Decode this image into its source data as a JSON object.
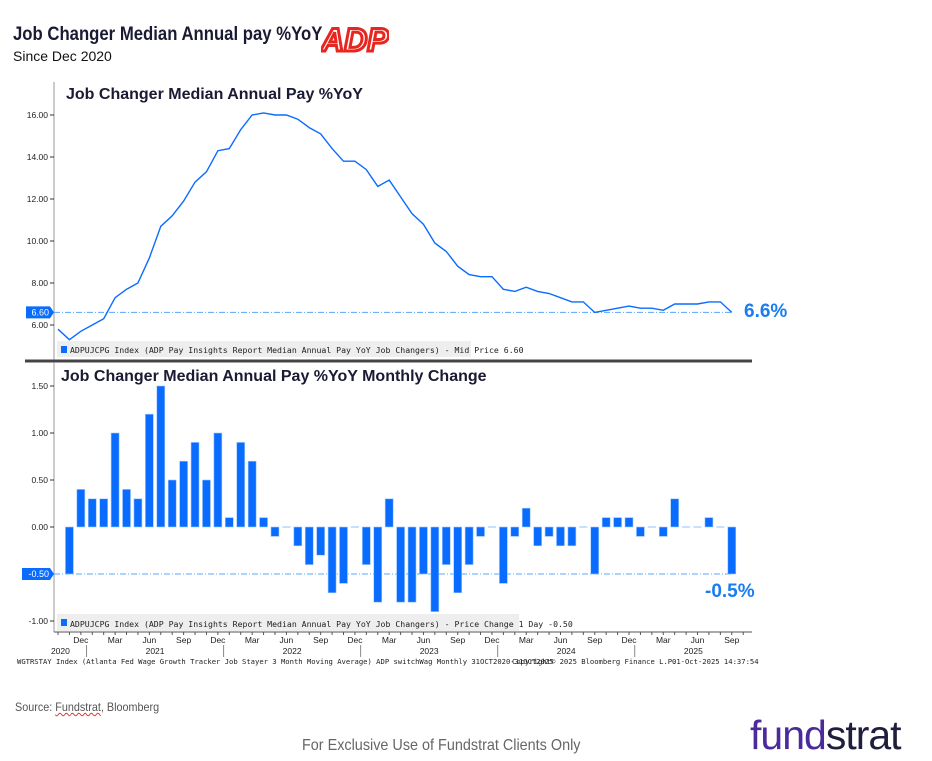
{
  "header": {
    "title": "Job Changer Median Annual pay %YoY",
    "subtitle": "Since Dec 2020",
    "logo": "ADP"
  },
  "colors": {
    "series": "#0a6cff",
    "callout": "#1a7cf0",
    "refline": "#5aa8ff",
    "divider": "#444444"
  },
  "chart_data": [
    {
      "type": "line",
      "title": "Job Changer Median Annual Pay %YoY",
      "x": [
        "Oct 2020",
        "Nov 2020",
        "Dec 2020",
        "Jan 2021",
        "Feb 2021",
        "Mar 2021",
        "Apr 2021",
        "May 2021",
        "Jun 2021",
        "Jul 2021",
        "Aug 2021",
        "Sep 2021",
        "Oct 2021",
        "Nov 2021",
        "Dec 2021",
        "Jan 2022",
        "Feb 2022",
        "Mar 2022",
        "Apr 2022",
        "May 2022",
        "Jun 2022",
        "Jul 2022",
        "Aug 2022",
        "Sep 2022",
        "Oct 2022",
        "Nov 2022",
        "Dec 2022",
        "Jan 2023",
        "Feb 2023",
        "Mar 2023",
        "Apr 2023",
        "May 2023",
        "Jun 2023",
        "Jul 2023",
        "Aug 2023",
        "Sep 2023",
        "Oct 2023",
        "Nov 2023",
        "Dec 2023",
        "Jan 2024",
        "Feb 2024",
        "Mar 2024",
        "Apr 2024",
        "May 2024",
        "Jun 2024",
        "Jul 2024",
        "Aug 2024",
        "Sep 2024",
        "Oct 2024",
        "Nov 2024",
        "Dec 2024",
        "Jan 2025",
        "Feb 2025",
        "Mar 2025",
        "Apr 2025",
        "May 2025",
        "Jun 2025",
        "Jul 2025",
        "Aug 2025",
        "Sep 2025"
      ],
      "values": [
        5.8,
        5.3,
        5.7,
        6.0,
        6.3,
        7.3,
        7.7,
        8.0,
        9.2,
        10.7,
        11.2,
        11.9,
        12.8,
        13.3,
        14.3,
        14.4,
        15.3,
        16.0,
        16.1,
        16.0,
        16.0,
        15.8,
        15.4,
        15.1,
        14.4,
        13.8,
        13.8,
        13.4,
        12.6,
        12.9,
        12.1,
        11.3,
        10.8,
        9.9,
        9.5,
        8.8,
        8.4,
        8.3,
        8.3,
        7.7,
        7.6,
        7.8,
        7.6,
        7.5,
        7.3,
        7.1,
        7.1,
        6.6,
        6.7,
        6.8,
        6.9,
        6.8,
        6.8,
        6.7,
        7.0,
        7.0,
        7.0,
        7.1,
        7.1,
        6.6
      ],
      "yticks": [
        "16.00",
        "14.00",
        "12.00",
        "10.00",
        "8.00",
        "6.00"
      ],
      "ylim": [
        4.2,
        17.5
      ],
      "last_value_tag": "6.60",
      "reference_line": 6.6,
      "legend": "ADPUJCPG Index (ADP Pay Insights Report Median Annual Pay YoY Job Changers) - Mid Price 6.60",
      "callout": "6.6%"
    },
    {
      "type": "bar",
      "title": "Job Changer Median Annual Pay %YoY Monthly Change",
      "x": [
        "Nov 2020",
        "Dec 2020",
        "Jan 2021",
        "Feb 2021",
        "Mar 2021",
        "Apr 2021",
        "May 2021",
        "Jun 2021",
        "Jul 2021",
        "Aug 2021",
        "Sep 2021",
        "Oct 2021",
        "Nov 2021",
        "Dec 2021",
        "Jan 2022",
        "Feb 2022",
        "Mar 2022",
        "Apr 2022",
        "May 2022",
        "Jun 2022",
        "Jul 2022",
        "Aug 2022",
        "Sep 2022",
        "Oct 2022",
        "Nov 2022",
        "Dec 2022",
        "Jan 2023",
        "Feb 2023",
        "Mar 2023",
        "Apr 2023",
        "May 2023",
        "Jun 2023",
        "Jul 2023",
        "Aug 2023",
        "Sep 2023",
        "Oct 2023",
        "Nov 2023",
        "Dec 2023",
        "Jan 2024",
        "Feb 2024",
        "Mar 2024",
        "Apr 2024",
        "May 2024",
        "Jun 2024",
        "Jul 2024",
        "Aug 2024",
        "Sep 2024",
        "Oct 2024",
        "Nov 2024",
        "Dec 2024",
        "Jan 2025",
        "Feb 2025",
        "Mar 2025",
        "Apr 2025",
        "May 2025",
        "Jun 2025",
        "Jul 2025",
        "Aug 2025",
        "Sep 2025"
      ],
      "values": [
        -0.5,
        0.4,
        0.3,
        0.3,
        1.0,
        0.4,
        0.3,
        1.2,
        1.5,
        0.5,
        0.7,
        0.9,
        0.5,
        1.0,
        0.1,
        0.9,
        0.7,
        0.1,
        -0.1,
        0,
        -0.2,
        -0.4,
        -0.3,
        -0.7,
        -0.6,
        0,
        -0.4,
        -0.8,
        0.3,
        -0.8,
        -0.8,
        -0.5,
        -0.9,
        -0.4,
        -0.7,
        -0.4,
        -0.1,
        0,
        -0.6,
        -0.1,
        0.2,
        -0.2,
        -0.1,
        -0.2,
        -0.2,
        0,
        -0.5,
        0.1,
        0.1,
        0.1,
        -0.1,
        0,
        -0.1,
        0.3,
        0,
        0,
        0.1,
        0,
        -0.5
      ],
      "yticks": [
        "1.50",
        "1.00",
        "0.50",
        "0.00",
        "-1.00"
      ],
      "ylim": [
        -1.12,
        1.67
      ],
      "last_value_tag": "-0.50",
      "reference_line": -0.5,
      "legend": "ADPUJCPG Index (ADP Pay Insights Report Median Annual Pay YoY Job Changers) - Price Change 1 Day -0.50",
      "callout": "-0.5%"
    }
  ],
  "x_axis": {
    "month_ticks": [
      "Dec",
      "Mar",
      "Jun",
      "Sep",
      "Dec",
      "Mar",
      "Jun",
      "Sep",
      "Dec",
      "Mar",
      "Jun",
      "Sep",
      "Dec",
      "Mar",
      "Jun",
      "Sep",
      "Dec",
      "Mar",
      "Jun",
      "Sep"
    ],
    "years": [
      "2020",
      "2021",
      "2022",
      "2023",
      "2024",
      "2025"
    ]
  },
  "bloomberg_footer": {
    "description": "WGTRSTAY Index (Atlanta Fed Wage Growth Tracker Job Stayer 3 Month Moving Average) ADP switchWag Monthly 31OCT2020-31OCT2025",
    "copyright": "Copyright© 2025 Bloomberg Finance L.P.",
    "timestamp": "01-Oct-2025 14:37:54"
  },
  "footer": {
    "source_prefix": "Source: ",
    "source_fundstrat": "Fundstrat",
    "source_suffix": ", Bloomberg",
    "disclaimer": "For Exclusive Use of Fundstrat Clients Only",
    "logo_part1": "fund",
    "logo_part2": "strat"
  }
}
